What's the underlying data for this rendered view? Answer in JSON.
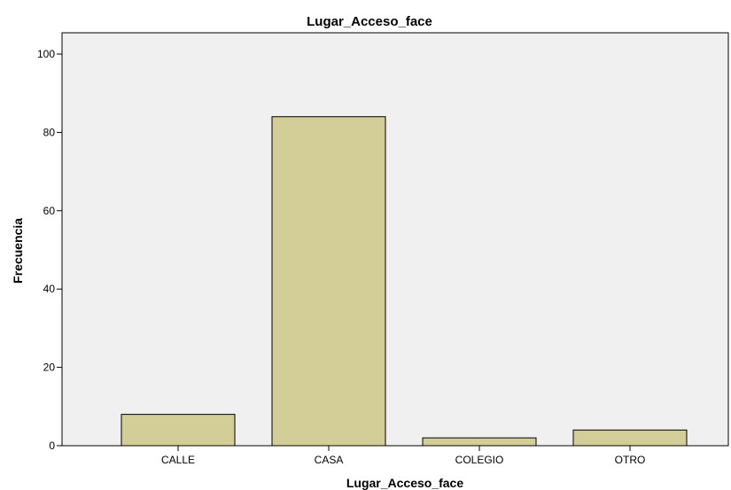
{
  "chart_data": {
    "type": "bar",
    "title": "Lugar_Acceso_face",
    "xlabel": "Lugar_Acceso_face",
    "ylabel": "Frecuencia",
    "categories": [
      "CALLE",
      "CASA",
      "COLEGIO",
      "OTRO"
    ],
    "values": [
      8,
      84,
      2,
      4
    ],
    "ylim": [
      0,
      100
    ],
    "yticks": [
      0,
      20,
      40,
      60,
      80,
      100
    ],
    "grid": false,
    "legend": "none",
    "colors": {
      "bar_fill": "#d3ce97",
      "bar_stroke": "#000000",
      "plot_background": "#f0f0f0",
      "page_background": "#ffffff"
    }
  }
}
